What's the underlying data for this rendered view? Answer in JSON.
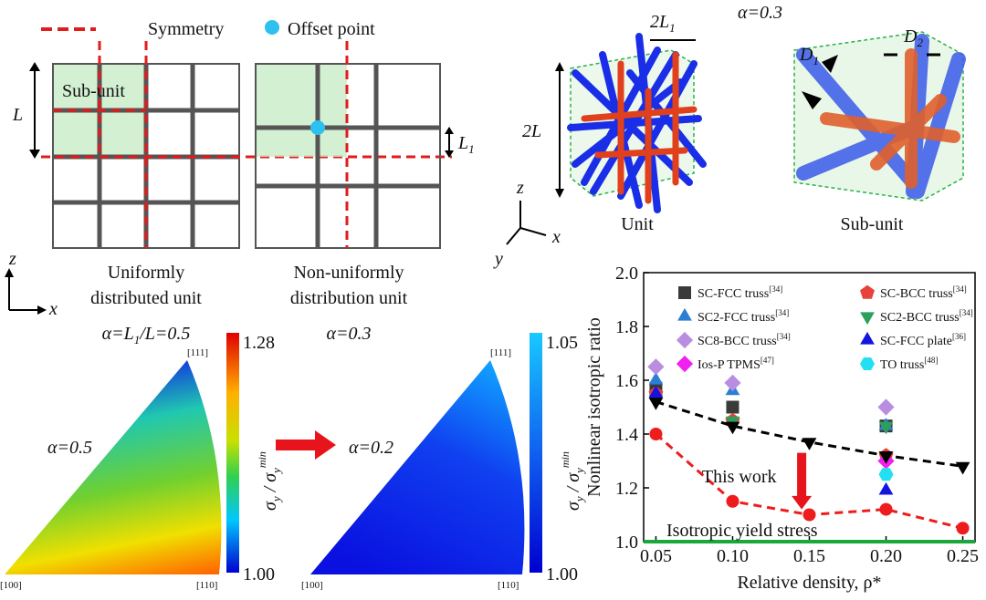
{
  "panels": {
    "legend": {
      "symmetry": "Symmetry",
      "offset": "Offset point"
    },
    "grid_left": {
      "subunit": "Sub-unit",
      "L": "L",
      "caption1": "Uniformly",
      "caption2": "distributed unit",
      "alpha_a": "α=L",
      "alpha_b": "1",
      "alpha_c": "/L=0.5"
    },
    "grid_right": {
      "L1_a": "L",
      "L1_b": "1",
      "caption1": "Non-uniformly",
      "caption2": "distribution unit",
      "alpha": "α=0.3"
    },
    "axes2d": {
      "z": "z",
      "x": "x"
    },
    "unit3d": {
      "twoL1_a": "2L",
      "twoL1_b": "1",
      "alpha": "α=0.3",
      "twoL": "2L",
      "D1_a": "D",
      "D1_b": "1",
      "D2_a": "D",
      "D2_b": "2",
      "unit": "Unit",
      "subunit": "Sub-unit",
      "z": "z",
      "y": "y",
      "x": "x"
    },
    "contour_left": {
      "alpha": "α=0.5",
      "v111": "[111]",
      "v100": "[100]",
      "v110": "[110]",
      "cmax": "1.28",
      "cmin": "1.00"
    },
    "contour_right": {
      "alpha": "α=0.2",
      "v111": "[111]",
      "v100": "[100]",
      "v110": "[110]",
      "cmax": "1.05",
      "cmin": "1.00"
    },
    "colorbar_label": {
      "sigma": "σ",
      "sub": "y",
      "slash": " / ",
      "sup": "min"
    }
  },
  "chart_data": {
    "type": "scatter",
    "xlabel": "Relative density, ρ*",
    "ylabel": "Nonlinear isotropic ratio",
    "x": [
      0.05,
      0.1,
      0.15,
      0.2,
      0.25
    ],
    "xlim": [
      0.042,
      0.258
    ],
    "ylim": [
      1.0,
      2.0
    ],
    "xticks": [
      0.05,
      {
        "value": 0.1,
        "label": "0.10"
      },
      0.15,
      {
        "value": 0.2,
        "label": "0.20"
      },
      0.25
    ],
    "yticks": [
      {
        "value": 1.0,
        "label": "1.0"
      },
      1.2,
      1.4,
      1.6,
      1.8,
      {
        "value": 2.0,
        "label": "2.0"
      }
    ],
    "series": [
      {
        "name": "SC-FCC truss",
        "ref": "[34]",
        "color": "#3a3a3a",
        "marker": "square",
        "values": [
          1.57,
          1.5,
          null,
          1.43,
          null
        ]
      },
      {
        "name": "SC-BCC truss",
        "ref": "[34]",
        "color": "#e8413c",
        "marker": "pentagon",
        "values": [
          1.55,
          1.45,
          null,
          1.32,
          null
        ]
      },
      {
        "name": "SC2-FCC truss",
        "ref": "[34]",
        "color": "#2a7fd4",
        "marker": "triangle",
        "values": [
          1.6,
          1.56,
          null,
          1.43,
          null
        ]
      },
      {
        "name": "SC2-BCC truss",
        "ref": "[34]",
        "color": "#2ca05a",
        "marker": "triangle-down",
        "values": [
          1.53,
          1.45,
          null,
          1.43,
          null
        ]
      },
      {
        "name": "SC8-BCC truss",
        "ref": "[34]",
        "color": "#b98ee0",
        "marker": "diamond",
        "values": [
          1.65,
          1.59,
          null,
          1.5,
          null
        ]
      },
      {
        "name": "SC-FCC plate",
        "ref": "[36]",
        "color": "#1414e0",
        "marker": "triangle",
        "values": [
          1.55,
          null,
          null,
          1.19,
          null
        ]
      },
      {
        "name": "Ios-P TPMS",
        "ref": "[47]",
        "color": "#f020f0",
        "marker": "diamond",
        "values": [
          null,
          null,
          null,
          1.3,
          null
        ]
      },
      {
        "name": "TO truss",
        "ref": "[48]",
        "color": "#22e0f2",
        "marker": "hexagon",
        "values": [
          null,
          null,
          null,
          1.25,
          null
        ]
      },
      {
        "color": "#000000",
        "marker": "triangle-down",
        "line": "dashed",
        "values": [
          1.52,
          1.43,
          1.37,
          1.32,
          1.28
        ]
      },
      {
        "color": "#ee1c1c",
        "marker": "circle",
        "line": "dashed",
        "values": [
          1.4,
          1.15,
          1.1,
          1.12,
          1.05
        ]
      }
    ],
    "annotation": "This work",
    "hline": {
      "value": 1.0,
      "label": "Isotropic yield stress",
      "color": "#1aa83a"
    }
  }
}
